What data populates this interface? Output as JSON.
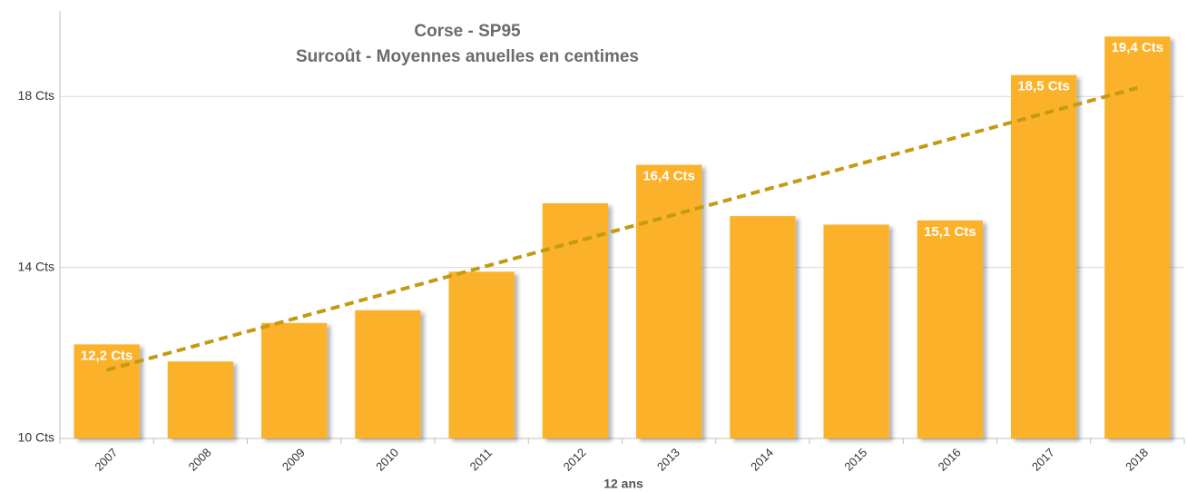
{
  "chart_data": {
    "type": "bar",
    "title": "Corse - SP95",
    "subtitle": "Surcoût - Moyennes anuelles en centimes",
    "x_label": "12 ans",
    "categories": [
      "2007",
      "2008",
      "2009",
      "2010",
      "2011",
      "2012",
      "2013",
      "2014",
      "2015",
      "2016",
      "2017",
      "2018"
    ],
    "values": [
      12.2,
      11.8,
      12.7,
      13.0,
      13.9,
      15.5,
      16.4,
      15.2,
      15.0,
      15.1,
      18.5,
      19.4
    ],
    "value_labels": [
      "12,2 Cts",
      null,
      null,
      null,
      null,
      null,
      "16,4 Cts",
      null,
      null,
      "15,1 Cts",
      "18,5 Cts",
      "19,4 Cts"
    ],
    "color": "#fbb229",
    "trendline": {
      "start": 11.6,
      "end": 18.2,
      "color": "#c39a12"
    },
    "ylim": [
      10,
      20
    ],
    "yticks": [
      {
        "value": 10,
        "label": "10 Cts"
      },
      {
        "value": 14,
        "label": "14 Cts"
      },
      {
        "value": 18,
        "label": "18 Cts"
      }
    ],
    "grid": true
  }
}
